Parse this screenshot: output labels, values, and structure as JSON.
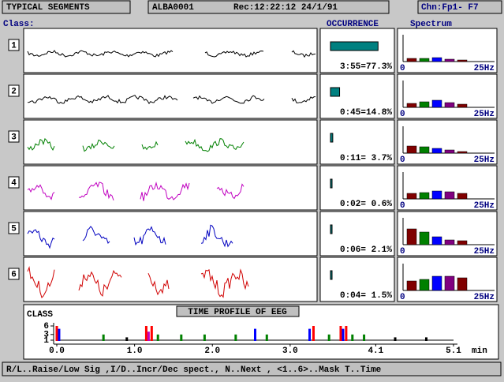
{
  "header": {
    "title": "TYPICAL SEGMENTS",
    "file": "ALBA0001",
    "record": "Rec:12:22:12 24/1/91",
    "channel": "Chn:Fp1- F7"
  },
  "labels": {
    "class": "Class:",
    "occurrence": "OCCURRENCE",
    "spectrum": "Spectrum",
    "spectrum_min": "0",
    "spectrum_max": "25Hz"
  },
  "spectrum_colors": [
    "#800000",
    "#008000",
    "#0000ff",
    "#800080",
    "#800000"
  ],
  "segments": [
    {
      "label": "1",
      "color": "#000000",
      "occurrence": 77.3,
      "occurrence_label": "3:55=77.3%",
      "spectrum": [
        4,
        4,
        5,
        3,
        2
      ]
    },
    {
      "label": "2",
      "color": "#000000",
      "occurrence": 14.8,
      "occurrence_label": "0:45=14.8%",
      "spectrum": [
        5,
        7,
        9,
        6,
        4
      ]
    },
    {
      "label": "3",
      "color": "#008000",
      "occurrence": 3.7,
      "occurrence_label": "0:11= 3.7%",
      "spectrum": [
        9,
        8,
        6,
        4,
        2
      ]
    },
    {
      "label": "4",
      "color": "#c000c0",
      "occurrence": 0.6,
      "occurrence_label": "0:02= 0.6%",
      "spectrum": [
        7,
        8,
        10,
        9,
        7
      ]
    },
    {
      "label": "5",
      "color": "#0000c0",
      "occurrence": 2.1,
      "occurrence_label": "0:06= 2.1%",
      "spectrum": [
        20,
        16,
        10,
        6,
        5
      ]
    },
    {
      "label": "6",
      "color": "#d00000",
      "occurrence": 1.5,
      "occurrence_label": "0:04= 1.5%",
      "spectrum": [
        12,
        14,
        18,
        18,
        16
      ]
    }
  ],
  "time_profile": {
    "title": "TIME PROFILE OF EEG",
    "y_label": "CLASS",
    "ylim": [
      1,
      6
    ],
    "yticks": [
      6,
      3,
      1
    ],
    "xlim": [
      0,
      5.1
    ],
    "xticks": [
      {
        "value": 0,
        "label": "0.0"
      },
      {
        "value": 1,
        "label": "1.0"
      },
      {
        "value": 2,
        "label": "2.0"
      },
      {
        "value": 3,
        "label": "3.0"
      },
      4.1,
      5.1
    ],
    "x_unit": "min",
    "events": [
      {
        "time": 0.0,
        "class": 6
      },
      {
        "time": 0.03,
        "class": 5
      },
      {
        "time": 0.6,
        "class": 3
      },
      {
        "time": 0.9,
        "class": 2
      },
      {
        "time": 1.15,
        "class": 6
      },
      {
        "time": 1.18,
        "class": 4
      },
      {
        "time": 1.22,
        "class": 6
      },
      {
        "time": 1.3,
        "class": 3
      },
      {
        "time": 1.6,
        "class": 3
      },
      {
        "time": 1.9,
        "class": 3
      },
      {
        "time": 2.3,
        "class": 3
      },
      {
        "time": 2.55,
        "class": 5
      },
      {
        "time": 2.7,
        "class": 3
      },
      {
        "time": 3.25,
        "class": 5
      },
      {
        "time": 3.3,
        "class": 6
      },
      {
        "time": 3.5,
        "class": 3
      },
      {
        "time": 3.65,
        "class": 6
      },
      {
        "time": 3.68,
        "class": 5
      },
      {
        "time": 3.72,
        "class": 6
      },
      {
        "time": 3.8,
        "class": 3
      },
      {
        "time": 3.95,
        "class": 3
      },
      {
        "time": 4.35,
        "class": 2
      },
      {
        "time": 4.75,
        "class": 2
      }
    ]
  },
  "status": "R/L..Raise/Low Sig ,I/D..Incr/Dec spect., N..Next , <1..6>..Mask  T..Time"
}
